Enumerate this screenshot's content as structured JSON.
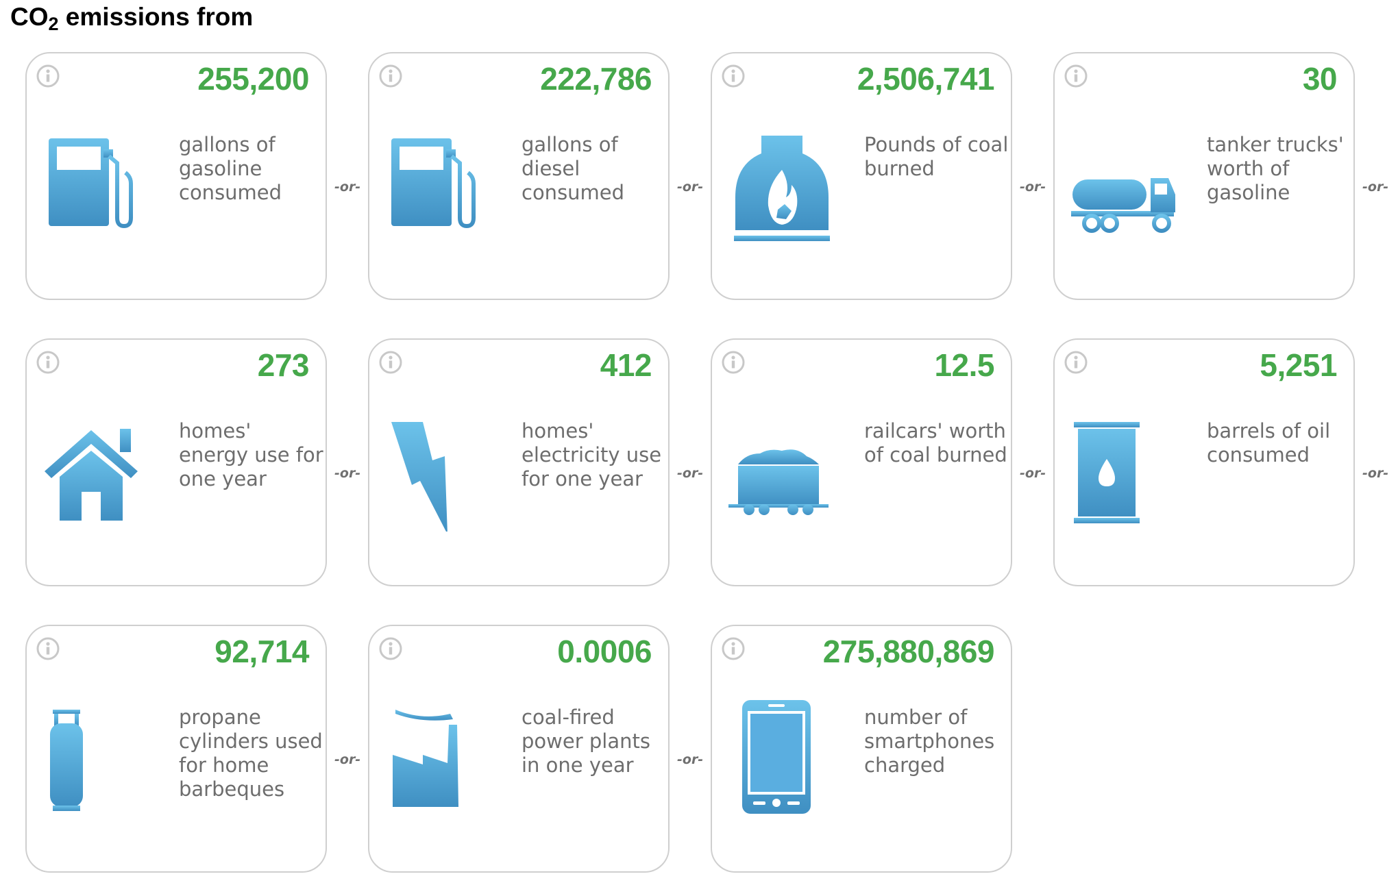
{
  "title": {
    "prefix": "CO",
    "subscript": "2",
    "suffix": " emissions from"
  },
  "separator": "-or-",
  "colors": {
    "value_green": "#46a84b",
    "icon_blue": "#4a9fd0",
    "border": "#cfcfcf"
  },
  "cards": [
    {
      "value": "255,200",
      "description": "gallons of gasoline consumed",
      "icon": "gas-pump-icon"
    },
    {
      "value": "222,786",
      "description": "gallons of diesel consumed",
      "icon": "diesel-pump-icon"
    },
    {
      "value": "2,506,741",
      "description": "Pounds of coal burned",
      "icon": "coal-furnace-icon"
    },
    {
      "value": "30",
      "description": "tanker trucks' worth of gasoline",
      "icon": "tanker-truck-icon"
    },
    {
      "value": "273",
      "description": "homes' energy use for one year",
      "icon": "house-icon"
    },
    {
      "value": "412",
      "description": "homes' electricity use for one year",
      "icon": "lightning-bolt-icon"
    },
    {
      "value": "12.5",
      "description": "railcars' worth of coal burned",
      "icon": "coal-railcar-icon"
    },
    {
      "value": "5,251",
      "description": "barrels of oil consumed",
      "icon": "oil-barrel-icon"
    },
    {
      "value": "92,714",
      "description": "propane cylinders used for home barbeques",
      "icon": "propane-cylinder-icon"
    },
    {
      "value": "0.0006",
      "description": "coal-fired power plants in one year",
      "icon": "power-plant-icon"
    },
    {
      "value": "275,880,869",
      "description": "number of smartphones charged",
      "icon": "smartphone-icon"
    }
  ]
}
